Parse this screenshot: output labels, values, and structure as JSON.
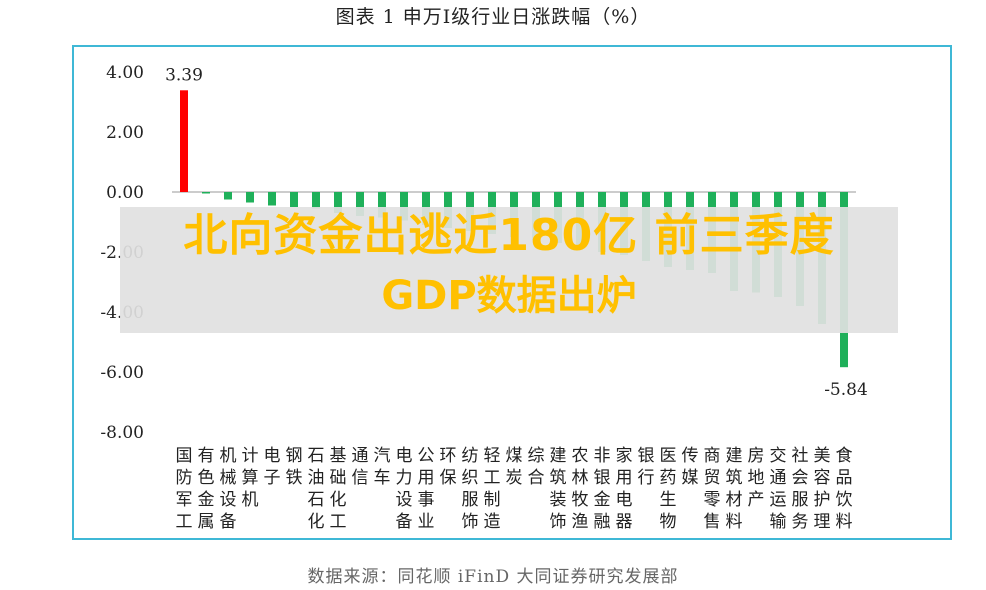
{
  "figure": {
    "title": "图表 1  申万I级行业日涨跌幅（%）",
    "source": "数据来源：同花顺 iFinD 大同证券研究发展部"
  },
  "overlay": {
    "line1": "北向资金出逃近180亿 前三季度",
    "line2": "GDP数据出炉"
  },
  "chart_data": {
    "type": "bar",
    "title": "申万I级行业日涨跌幅（%）",
    "categories": [
      "国防军工",
      "有色金属",
      "机械设备",
      "计算机",
      "电子",
      "钢铁",
      "石油石化",
      "基础化工",
      "通信",
      "汽车",
      "电力设备",
      "公用事业",
      "环保",
      "纺织服饰",
      "轻工制造",
      "煤炭",
      "综合",
      "建筑装饰",
      "农林牧渔",
      "非银金融",
      "家用电器",
      "银行",
      "医药生物",
      "传媒",
      "商贸零售",
      "建筑材料",
      "房地产",
      "交通运输",
      "社会服务",
      "美容护理",
      "食品饮料"
    ],
    "category_labels": [
      [
        "国",
        "防",
        "军",
        "工"
      ],
      [
        "有",
        "色",
        "金",
        "属"
      ],
      [
        "机",
        "械",
        "设",
        "备"
      ],
      [
        "计",
        "算",
        "机"
      ],
      [
        "电",
        "子"
      ],
      [
        "钢",
        "铁"
      ],
      [
        "石",
        "油",
        "石",
        "化"
      ],
      [
        "基",
        "础",
        "化",
        "工"
      ],
      [
        "通",
        "信"
      ],
      [
        "汽",
        "车"
      ],
      [
        "电",
        "力",
        "设",
        "备"
      ],
      [
        "公",
        "用",
        "事",
        "业"
      ],
      [
        "环",
        "保"
      ],
      [
        "纺",
        "织",
        "服",
        "饰"
      ],
      [
        "轻",
        "工",
        "制",
        "造"
      ],
      [
        "煤",
        "炭"
      ],
      [
        "综",
        "合"
      ],
      [
        "建",
        "筑",
        "装",
        "饰"
      ],
      [
        "农",
        "林",
        "牧",
        "渔"
      ],
      [
        "非",
        "银",
        "金",
        "融"
      ],
      [
        "家",
        "用",
        "电",
        "器"
      ],
      [
        "银",
        "行"
      ],
      [
        "医",
        "药",
        "生",
        "物"
      ],
      [
        "传",
        "媒"
      ],
      [
        "商",
        "贸",
        "零",
        "售"
      ],
      [
        "建",
        "筑",
        "材",
        "料"
      ],
      [
        "房",
        "地",
        "产"
      ],
      [
        "交",
        "通",
        "运",
        "输"
      ],
      [
        "社",
        "会",
        "服",
        "务"
      ],
      [
        "美",
        "容",
        "护",
        "理"
      ],
      [
        "食",
        "品",
        "饮",
        "料"
      ]
    ],
    "values": [
      3.39,
      -0.05,
      -0.25,
      -0.35,
      -0.45,
      -0.5,
      -0.55,
      -0.7,
      -0.8,
      -0.85,
      -0.95,
      -1.1,
      -1.2,
      -1.3,
      -1.4,
      -1.5,
      -1.6,
      -1.7,
      -1.85,
      -2.0,
      -2.1,
      -2.3,
      -2.5,
      -2.6,
      -2.7,
      -3.3,
      -3.35,
      -3.5,
      -3.8,
      -4.4,
      -5.84
    ],
    "data_labels": [
      {
        "index": 0,
        "text": "3.39"
      },
      {
        "index": 30,
        "text": "-5.84"
      }
    ],
    "yticks": [
      "4.00",
      "2.00",
      "0.00",
      "-2.00",
      "-4.00",
      "-6.00",
      "-8.00"
    ],
    "ylim": [
      -8,
      4
    ],
    "grid": false,
    "colors": {
      "positive": "#ff0000",
      "negative": "#1fb05a",
      "axis": "#999999",
      "frame": "#3fb8d6"
    }
  }
}
